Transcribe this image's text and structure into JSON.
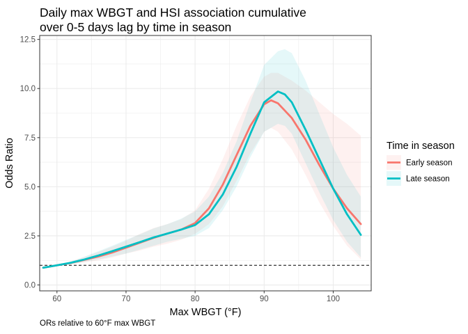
{
  "chart_data": {
    "type": "line",
    "title_line1": "Daily max WBGT and HSI association cumulative",
    "title_line2": "over 0-5 days lag by time in season",
    "xlabel": "Max WBGT (°F)",
    "ylabel": "Odds Ratio",
    "caption": "ORs relative to 60°F max WBGT",
    "xlim": [
      57.5,
      105.5
    ],
    "ylim": [
      -0.3,
      12.7
    ],
    "x_ticks": [
      60,
      70,
      80,
      90,
      100
    ],
    "x_tick_labels": [
      "60",
      "70",
      "80",
      "90",
      "100"
    ],
    "y_ticks": [
      0,
      2.5,
      5,
      7.5,
      10,
      12.5
    ],
    "y_tick_labels": [
      "0.0",
      "2.5",
      "5.0",
      "7.5",
      "10.0",
      "12.5"
    ],
    "grid": true,
    "reference_line": {
      "y": 1,
      "style": "dashed"
    },
    "legend": {
      "title": "Time in season",
      "placement": "right"
    },
    "series": [
      {
        "name": "Early season",
        "color": "#F8766D",
        "x": [
          58,
          60,
          62,
          64,
          66,
          68,
          70,
          72,
          74,
          76,
          78,
          80,
          82,
          84,
          86,
          88,
          90,
          91,
          92,
          94,
          96,
          98,
          100,
          102,
          104
        ],
        "y": [
          0.88,
          1.0,
          1.12,
          1.28,
          1.45,
          1.65,
          1.9,
          2.15,
          2.4,
          2.62,
          2.82,
          3.15,
          3.9,
          5.1,
          6.6,
          8.1,
          9.2,
          9.4,
          9.25,
          8.5,
          7.4,
          6.1,
          4.9,
          3.9,
          3.1
        ],
        "lower": [
          0.84,
          1.0,
          1.05,
          1.15,
          1.25,
          1.4,
          1.6,
          1.75,
          1.95,
          2.1,
          2.3,
          2.6,
          3.1,
          4.0,
          5.3,
          6.7,
          7.8,
          8.0,
          7.8,
          6.9,
          5.6,
          4.2,
          3.0,
          2.0,
          1.3
        ],
        "upper": [
          0.92,
          1.0,
          1.2,
          1.42,
          1.68,
          1.95,
          2.25,
          2.6,
          2.9,
          3.1,
          3.35,
          3.8,
          4.9,
          6.4,
          8.1,
          9.6,
          10.6,
          10.8,
          10.8,
          10.4,
          9.9,
          9.3,
          8.7,
          8.2,
          7.6
        ]
      },
      {
        "name": "Late season",
        "color": "#00BFC4",
        "x": [
          58,
          60,
          62,
          64,
          66,
          68,
          70,
          72,
          74,
          76,
          78,
          80,
          82,
          84,
          86,
          88,
          90,
          92,
          93,
          94,
          96,
          98,
          100,
          102,
          104
        ],
        "y": [
          0.88,
          1.0,
          1.13,
          1.3,
          1.5,
          1.72,
          1.95,
          2.18,
          2.42,
          2.62,
          2.82,
          3.05,
          3.6,
          4.6,
          6.0,
          7.7,
          9.3,
          9.85,
          9.7,
          9.3,
          7.9,
          6.4,
          4.9,
          3.6,
          2.55
        ],
        "lower": [
          0.84,
          1.0,
          1.06,
          1.18,
          1.3,
          1.45,
          1.6,
          1.8,
          2.0,
          2.2,
          2.35,
          2.5,
          2.9,
          3.8,
          5.0,
          6.5,
          7.8,
          8.2,
          8.1,
          7.7,
          6.2,
          4.7,
          3.3,
          2.2,
          1.4
        ],
        "upper": [
          0.92,
          1.0,
          1.2,
          1.45,
          1.72,
          2.0,
          2.3,
          2.58,
          2.88,
          3.1,
          3.38,
          3.75,
          4.5,
          5.7,
          7.3,
          9.3,
          11.2,
          11.9,
          12.0,
          11.8,
          10.4,
          8.7,
          7.0,
          5.6,
          4.5
        ]
      }
    ]
  }
}
